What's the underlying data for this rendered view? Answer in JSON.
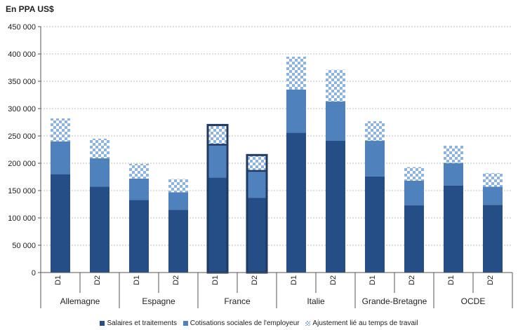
{
  "chart_data": {
    "type": "bar",
    "stacked": true,
    "unit_label": "En PPA US$",
    "groups": [
      {
        "name": "Allemagne",
        "bars": [
          {
            "label": "D1",
            "values": [
              180000,
              60000,
              42000
            ]
          },
          {
            "label": "D2",
            "values": [
              157000,
              52000,
              36000
            ]
          }
        ]
      },
      {
        "name": "Espagne",
        "bars": [
          {
            "label": "D1",
            "values": [
              133000,
              39000,
              27000
            ]
          },
          {
            "label": "D2",
            "values": [
              115000,
              32000,
              24000
            ]
          }
        ]
      },
      {
        "name": "France",
        "bars": [
          {
            "label": "D1",
            "values": [
              174000,
              60000,
              36000
            ]
          },
          {
            "label": "D2",
            "values": [
              137000,
              49000,
              29000
            ]
          }
        ]
      },
      {
        "name": "Italie",
        "bars": [
          {
            "label": "D1",
            "values": [
              256000,
              79000,
              60000
            ]
          },
          {
            "label": "D2",
            "values": [
              241000,
              72000,
              58000
            ]
          }
        ]
      },
      {
        "name": "Grande-Bretagne",
        "bars": [
          {
            "label": "D1",
            "values": [
              176000,
              65000,
              36000
            ]
          },
          {
            "label": "D2",
            "values": [
              123000,
              45000,
              25000
            ]
          }
        ]
      },
      {
        "name": "OCDE",
        "bars": [
          {
            "label": "D1",
            "values": [
              159000,
              41000,
              32000
            ]
          },
          {
            "label": "D2",
            "values": [
              124000,
              33000,
              25000
            ]
          }
        ]
      }
    ],
    "series": [
      {
        "name": "Salaires et traitements",
        "color": "#254e87"
      },
      {
        "name": "Cotisations sociales de l'employeur",
        "color": "#4f81bd"
      },
      {
        "name": "Ajustement lié au temps de travail",
        "color": "#8db3e2",
        "pattern": "checker"
      }
    ],
    "highlighted_group": "France",
    "ylim": [
      0,
      450000
    ],
    "yticks": [
      0,
      50000,
      100000,
      150000,
      200000,
      250000,
      300000,
      350000,
      400000,
      450000
    ],
    "ytick_labels": [
      "0",
      "50 000",
      "100 000",
      "150 000",
      "200 000",
      "250 000",
      "300 000",
      "350 000",
      "400 000",
      "450 000"
    ],
    "grid": true,
    "legend_position": "bottom"
  }
}
